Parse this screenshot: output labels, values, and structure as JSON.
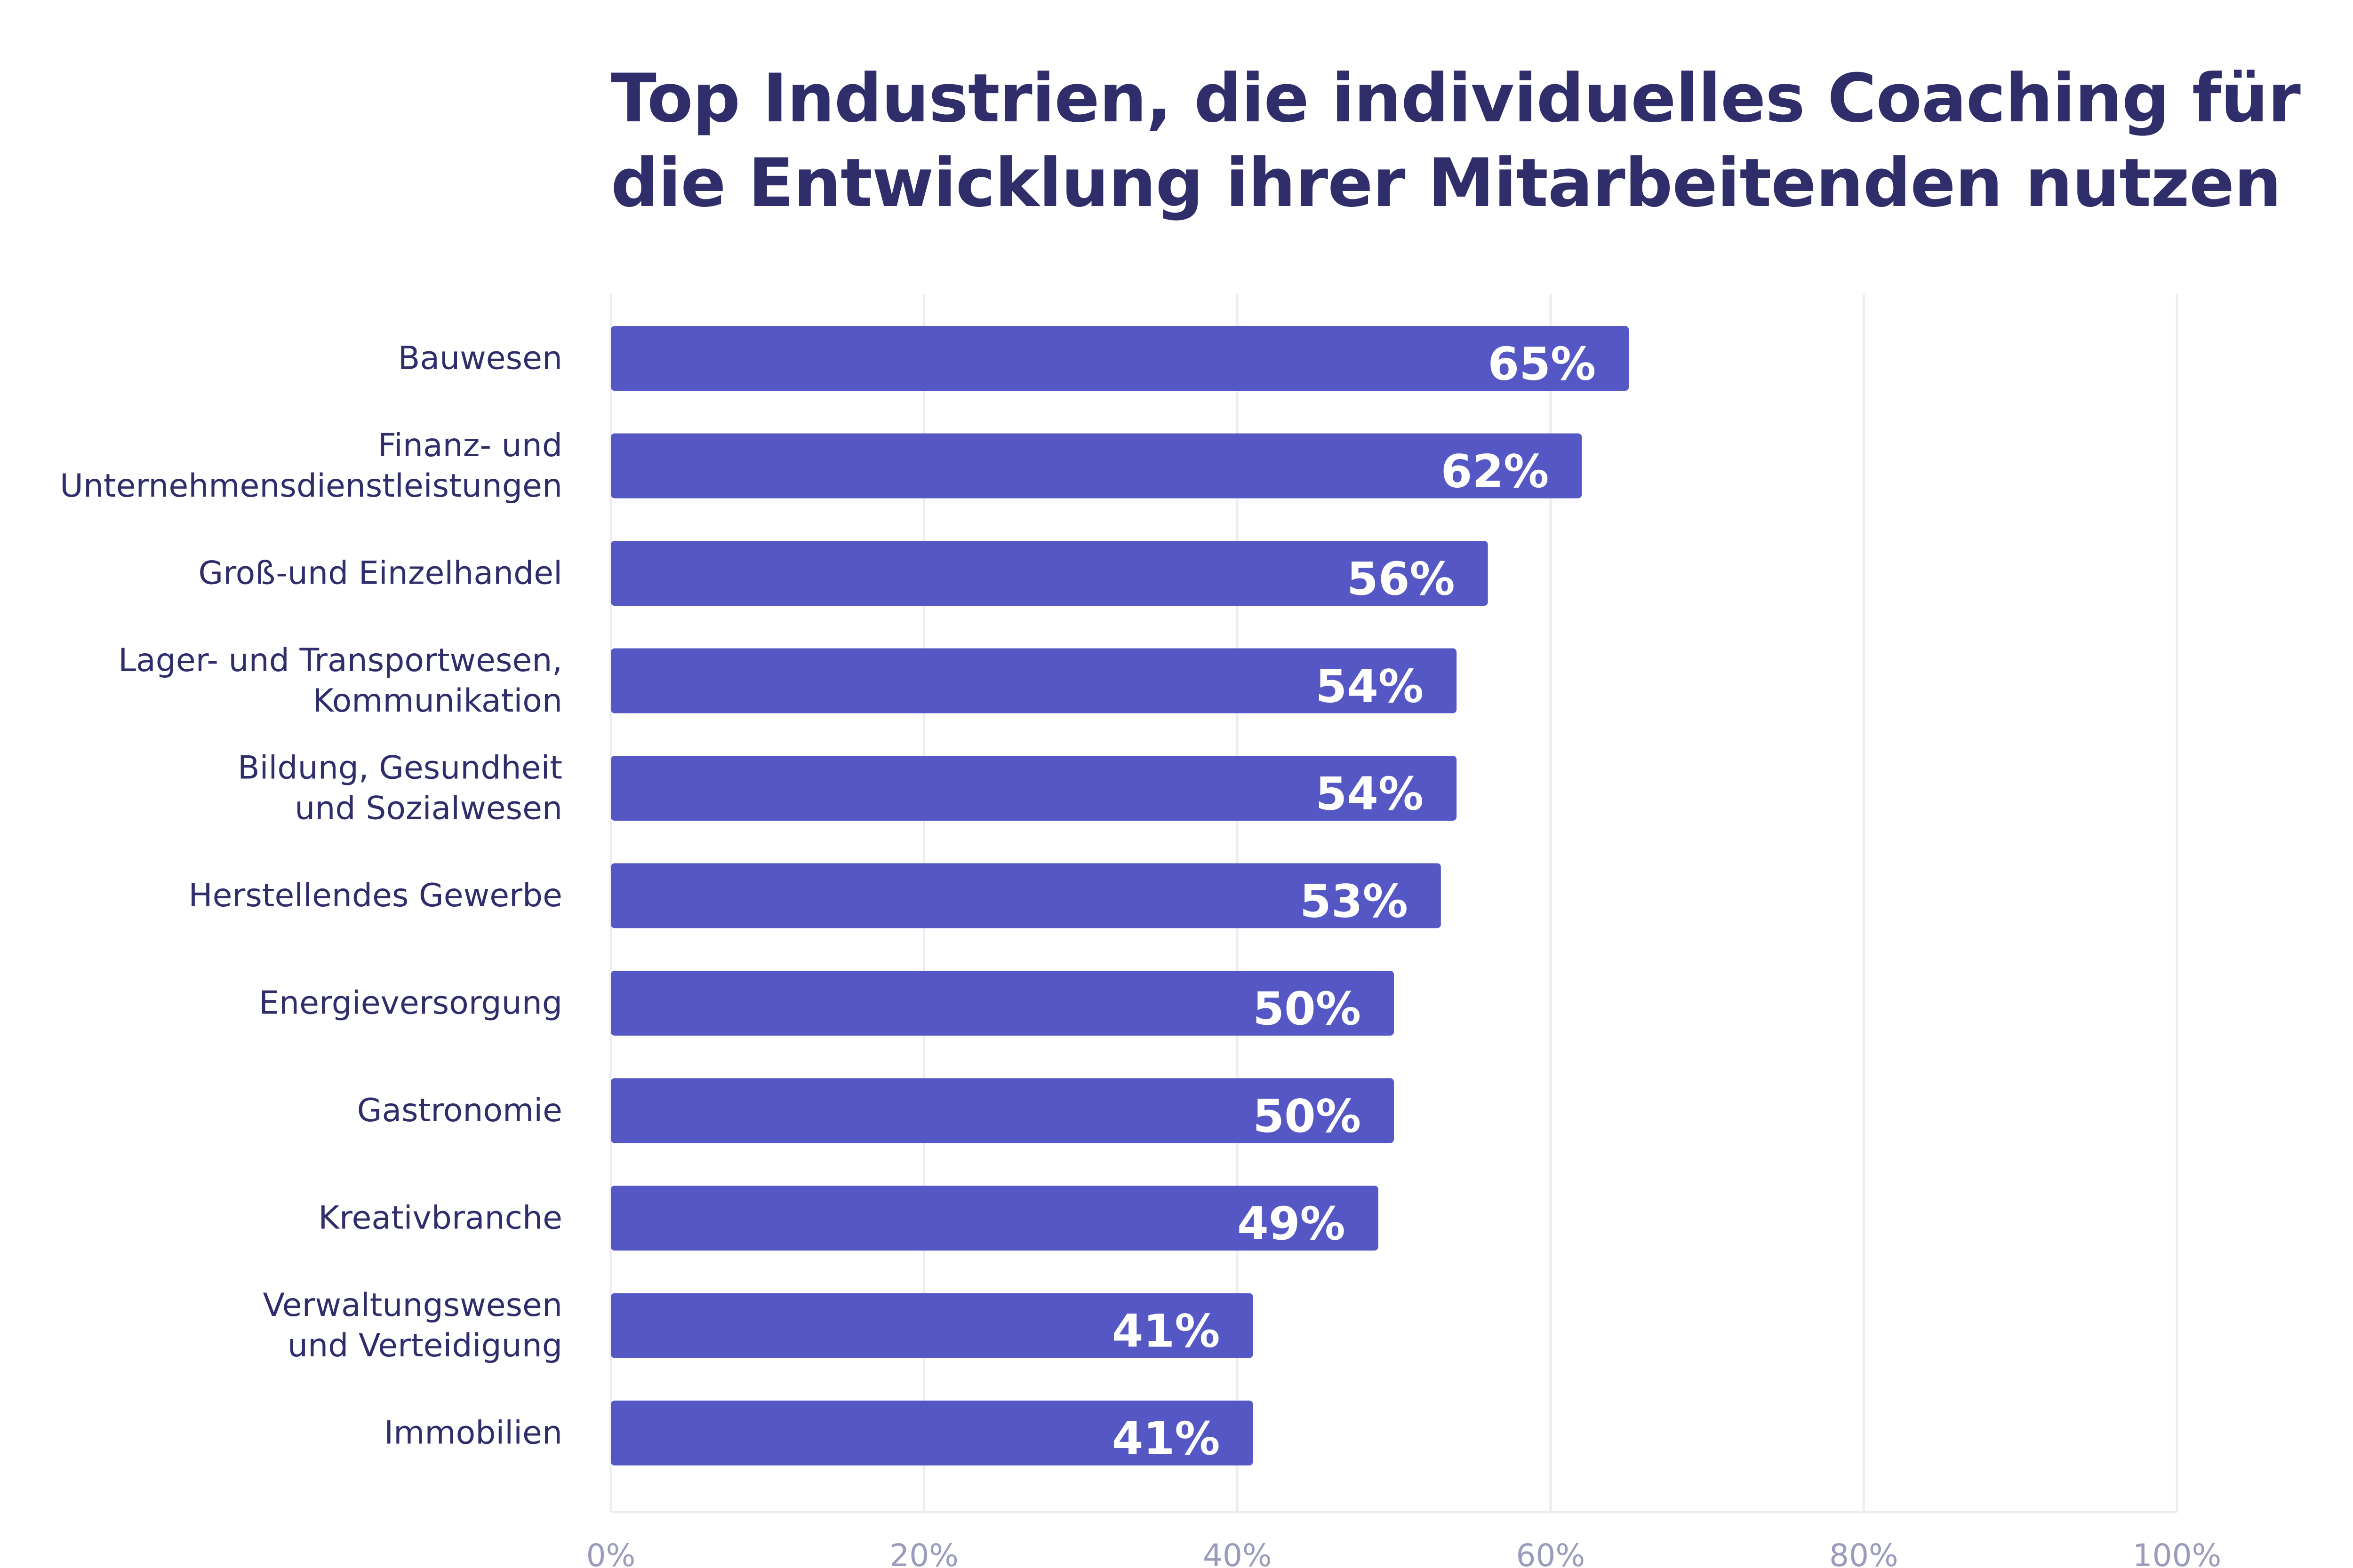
{
  "chart_data": {
    "type": "bar",
    "orientation": "horizontal",
    "title": "Top Industrien, die individuelles Coaching für die Entwicklung ihrer Mitarbeitenden nutzen",
    "categories": [
      [
        "Bauwesen"
      ],
      [
        "Finanz- und",
        "Unternehmensdienstleistungen"
      ],
      [
        "Groß-und Einzelhandel"
      ],
      [
        "Lager- und Transportwesen,",
        "Kommunikation"
      ],
      [
        "Bildung, Gesundheit",
        "und Sozialwesen"
      ],
      [
        "Herstellendes Gewerbe"
      ],
      [
        "Energieversorgung"
      ],
      [
        "Gastronomie"
      ],
      [
        "Kreativbranche"
      ],
      [
        "Verwaltungswesen",
        "und Verteidigung"
      ],
      [
        "Immobilien"
      ]
    ],
    "values": [
      65,
      62,
      56,
      54,
      54,
      53,
      50,
      50,
      49,
      41,
      41
    ],
    "value_labels": [
      "65%",
      "62%",
      "56%",
      "54%",
      "54%",
      "53%",
      "50%",
      "50%",
      "49%",
      "41%",
      "41%"
    ],
    "xlim": [
      0,
      100
    ],
    "x_ticks": [
      0,
      20,
      40,
      60,
      80,
      100
    ],
    "x_tick_labels": [
      "0%",
      "20%",
      "40%",
      "60%",
      "80%",
      "100%"
    ],
    "grid": true,
    "bar_color": "#5558c4",
    "title_color": "#2f2e6b",
    "label_color": "#2f2e6b",
    "tick_color": "#9b9cbb"
  }
}
